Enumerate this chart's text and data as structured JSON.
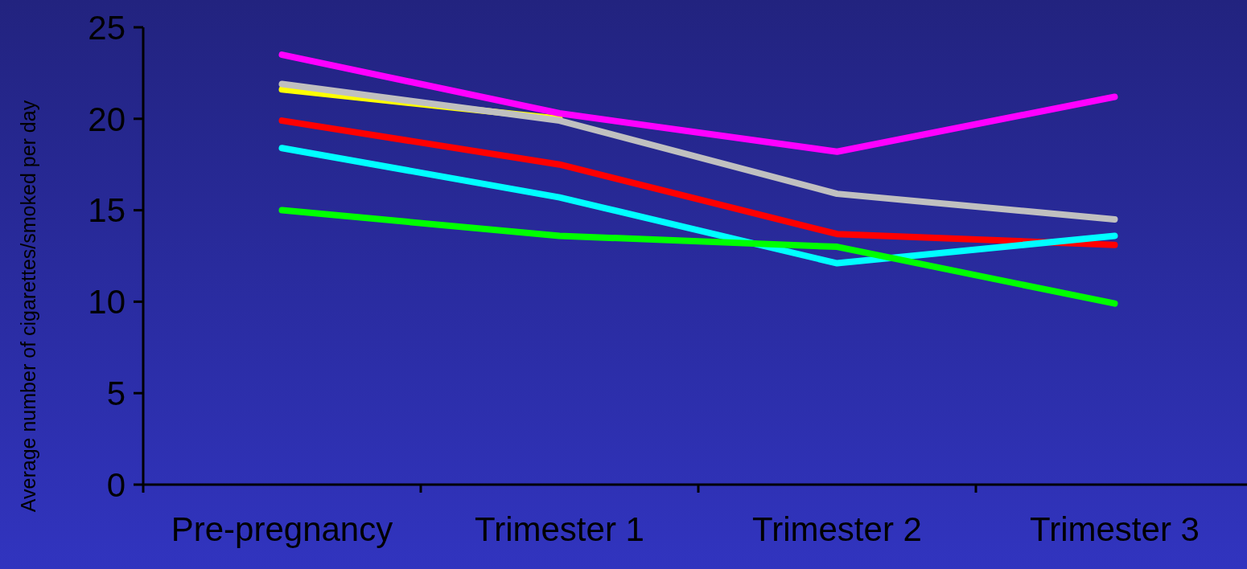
{
  "chart_data": {
    "type": "line",
    "ylabel": "Average number of cigarettes/smoked per day",
    "categories": [
      "Pre-pregnancy",
      "Trimester 1",
      "Trimester 2",
      "Trimester 3"
    ],
    "ylim": [
      0,
      25
    ],
    "yticks": [
      0,
      5,
      10,
      15,
      20,
      25
    ],
    "grid": false,
    "marker": "none",
    "line_style": "solid",
    "series": [
      {
        "color": "#ffff00",
        "values": [
          21.6,
          20.0,
          null,
          null
        ]
      },
      {
        "color": "#c0c0c0",
        "values": [
          21.9,
          19.9,
          15.9,
          14.5
        ]
      },
      {
        "color": "#ff00ff",
        "values": [
          23.5,
          20.3,
          18.2,
          21.2
        ]
      },
      {
        "color": "#ff0000",
        "values": [
          19.9,
          17.5,
          13.7,
          13.1
        ]
      },
      {
        "color": "#00ffff",
        "values": [
          18.4,
          15.7,
          12.1,
          13.6
        ]
      },
      {
        "color": "#00ff00",
        "values": [
          15.0,
          13.6,
          13.0,
          9.9
        ]
      }
    ]
  }
}
